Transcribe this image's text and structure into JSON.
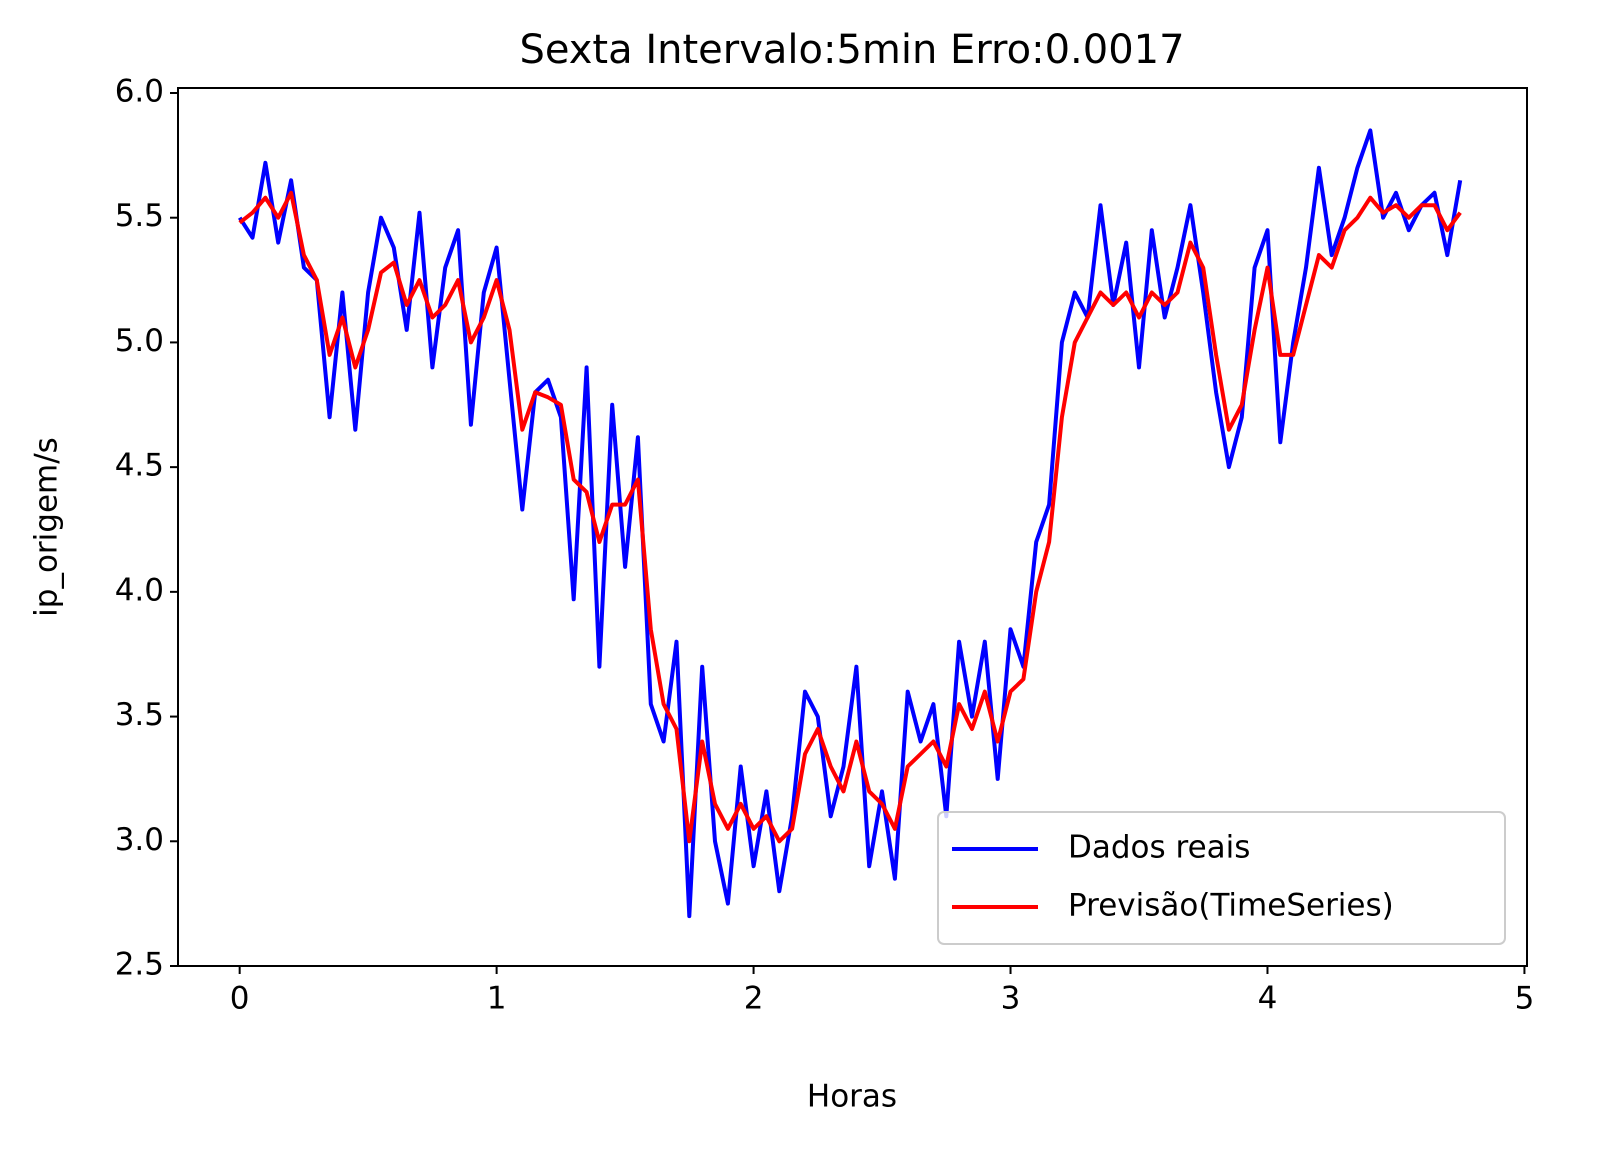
{
  "chart_data": {
    "type": "line",
    "title": "Sexta Intervalo:5min Erro:0.0017",
    "x_label": "Horas",
    "y_label": "ip_origem/s",
    "x": [
      0,
      0.05,
      0.1,
      0.15,
      0.2,
      0.25,
      0.3,
      0.35,
      0.4,
      0.45,
      0.5,
      0.55,
      0.6,
      0.65,
      0.7,
      0.75,
      0.8,
      0.85,
      0.9,
      0.95,
      1,
      1.05,
      1.1,
      1.15,
      1.2,
      1.25,
      1.3,
      1.35,
      1.4,
      1.45,
      1.5,
      1.55,
      1.6,
      1.65,
      1.7,
      1.75,
      1.8,
      1.85,
      1.9,
      1.95,
      2,
      2.05,
      2.1,
      2.15,
      2.2,
      2.25,
      2.3,
      2.35,
      2.4,
      2.45,
      2.5,
      2.55,
      2.6,
      2.65,
      2.7,
      2.75,
      2.8,
      2.85,
      2.9,
      2.95,
      3,
      3.05,
      3.1,
      3.15,
      3.2,
      3.25,
      3.3,
      3.35,
      3.4,
      3.45,
      3.5,
      3.55,
      3.6,
      3.65,
      3.7,
      3.75,
      3.8,
      3.85,
      3.9,
      3.95,
      4,
      4.05,
      4.1,
      4.15,
      4.2,
      4.25,
      4.3,
      4.35,
      4.4,
      4.45,
      4.5,
      4.55,
      4.6,
      4.65,
      4.7,
      4.75
    ],
    "series": [
      {
        "name": "Dados reais",
        "color": "#0000ff",
        "values": [
          5.5,
          5.42,
          5.72,
          5.4,
          5.65,
          5.3,
          5.25,
          4.7,
          5.2,
          4.65,
          5.2,
          5.5,
          5.38,
          5.05,
          5.52,
          4.9,
          5.3,
          5.45,
          4.67,
          5.2,
          5.38,
          4.85,
          4.33,
          4.8,
          4.85,
          4.7,
          3.97,
          4.9,
          3.7,
          4.75,
          4.1,
          4.62,
          3.55,
          3.4,
          3.8,
          2.7,
          3.7,
          3.0,
          2.75,
          3.3,
          2.9,
          3.2,
          2.8,
          3.1,
          3.6,
          3.5,
          3.1,
          3.3,
          3.7,
          2.9,
          3.2,
          2.85,
          3.6,
          3.4,
          3.55,
          3.1,
          3.8,
          3.5,
          3.8,
          3.25,
          3.85,
          3.7,
          4.2,
          4.35,
          5.0,
          5.2,
          5.1,
          5.55,
          5.15,
          5.4,
          4.9,
          5.45,
          5.1,
          5.3,
          5.55,
          5.2,
          4.8,
          4.5,
          4.7,
          5.3,
          5.45,
          4.6,
          5.0,
          5.3,
          5.7,
          5.35,
          5.5,
          5.7,
          5.85,
          5.5,
          5.6,
          5.45,
          5.55,
          5.6,
          5.35,
          5.65
        ]
      },
      {
        "name": "Previsão(TimeSeries)",
        "color": "#ff0000",
        "values": [
          5.48,
          5.52,
          5.58,
          5.5,
          5.6,
          5.35,
          5.25,
          4.95,
          5.1,
          4.9,
          5.05,
          5.28,
          5.32,
          5.15,
          5.25,
          5.1,
          5.15,
          5.25,
          5.0,
          5.1,
          5.25,
          5.05,
          4.65,
          4.8,
          4.78,
          4.75,
          4.45,
          4.4,
          4.2,
          4.35,
          4.35,
          4.45,
          3.85,
          3.55,
          3.45,
          3.0,
          3.4,
          3.15,
          3.05,
          3.15,
          3.05,
          3.1,
          3.0,
          3.05,
          3.35,
          3.45,
          3.3,
          3.2,
          3.4,
          3.2,
          3.15,
          3.05,
          3.3,
          3.35,
          3.4,
          3.3,
          3.55,
          3.45,
          3.6,
          3.4,
          3.6,
          3.65,
          4.0,
          4.2,
          4.7,
          5.0,
          5.1,
          5.2,
          5.15,
          5.2,
          5.1,
          5.2,
          5.15,
          5.2,
          5.4,
          5.3,
          4.95,
          4.65,
          4.75,
          5.05,
          5.3,
          4.95,
          4.95,
          5.15,
          5.35,
          5.3,
          5.45,
          5.5,
          5.58,
          5.52,
          5.55,
          5.5,
          5.55,
          5.55,
          5.45,
          5.52
        ]
      }
    ],
    "xlim": [
      -0.24,
      5.01
    ],
    "ylim": [
      2.5,
      6.02
    ],
    "xticks": [
      0,
      1,
      2,
      3,
      4,
      5
    ],
    "yticks": [
      2.5,
      {
        "value": 3.0,
        "label": "3.0"
      },
      3.5,
      {
        "value": 4.0,
        "label": "4.0"
      },
      4.5,
      {
        "value": 5.0,
        "label": "5.0"
      },
      5.5,
      {
        "value": 6.0,
        "label": "6.0"
      }
    ],
    "grid": false,
    "legend": "lower right"
  }
}
